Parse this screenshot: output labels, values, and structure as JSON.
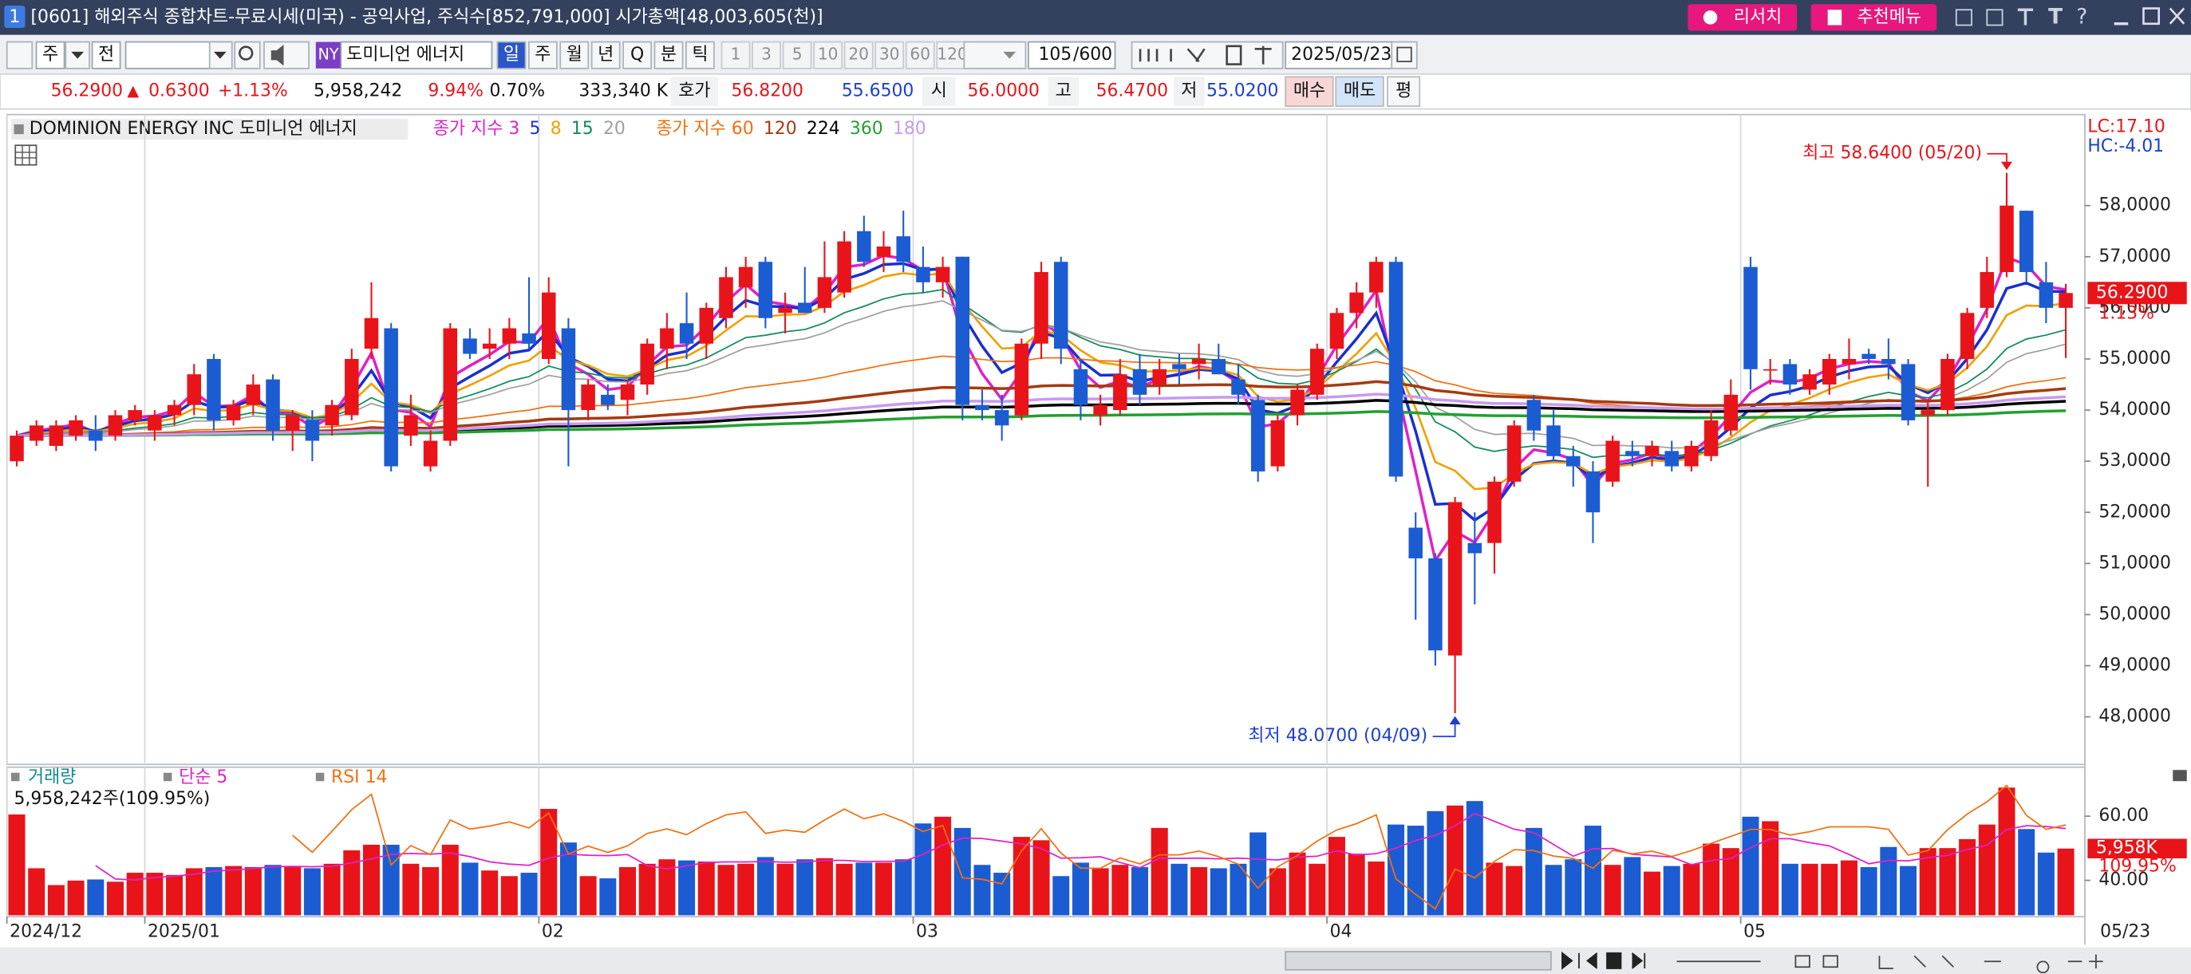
{
  "window": {
    "badge": "1",
    "title": "[0601] 해외주식 종합차트-무료시세(미국) - 공익사업, 주식수[852,791,000] 시가총액[48,003,605(천)]",
    "buttons": [
      "리서치",
      "추천메뉴"
    ],
    "glyphs": [
      "T",
      "?"
    ]
  },
  "toolbar": {
    "period_unit": "주",
    "scope": "전",
    "market": "NY",
    "stock_name": "도미니언 에너지",
    "periods": [
      "일",
      "주",
      "월",
      "년",
      "Q",
      "분",
      "틱"
    ],
    "minutes": [
      "1",
      "3",
      "5",
      "10",
      "20",
      "30",
      "60",
      "120"
    ],
    "count": "105",
    "count_max": "/600",
    "date": "2025/05/23"
  },
  "quote": {
    "price": "56.2900",
    "arrow": "▲",
    "change": "0.6300",
    "change_pct": "+1.13%",
    "volume": "5,958,242",
    "volume_pct": "9.94%",
    "turnover": "0.70%",
    "amount": "333,340 K",
    "bid_ask_label": "호가",
    "ask": "56.8200",
    "bid": "55.6500",
    "open_label": "시",
    "open": "56.0000",
    "high_label": "고",
    "high": "56.4700",
    "low_label": "저",
    "low": "55.0200",
    "buy": "매수",
    "sell": "매도",
    "avg": "평"
  },
  "chart_data": {
    "type": "candlestick",
    "name": "DOMINION ENERGY INC  도미니언 에너지",
    "ma_groups": [
      {
        "label": "종가 지수",
        "periods": [
          {
            "value": 3,
            "color": "#e020c8",
            "width": 2
          },
          {
            "value": 5,
            "color": "#1a2fd0",
            "width": 2
          },
          {
            "value": 8,
            "color": "#f0a000",
            "width": 1.5
          },
          {
            "value": 15,
            "color": "#118a5a",
            "width": 1
          },
          {
            "value": 20,
            "color": "#a0a0a0",
            "width": 1
          }
        ]
      },
      {
        "label": "종가 지수",
        "periods": [
          {
            "value": 60,
            "color": "#f07010",
            "width": 1
          },
          {
            "value": 120,
            "color": "#a63a10",
            "width": 2
          },
          {
            "value": 224,
            "color": "#000000",
            "width": 2
          },
          {
            "value": 360,
            "color": "#22a030",
            "width": 2
          },
          {
            "value": 180,
            "color": "#c89af0",
            "width": 2
          }
        ]
      }
    ],
    "up_color": "#e8141a",
    "down_color": "#1c5cd2",
    "ylim": [
      47.07,
      59.78
    ],
    "yticks": [
      {
        "value": 48,
        "label": "48,0000"
      },
      {
        "value": 49,
        "label": "49,0000"
      },
      {
        "value": 50,
        "label": "50,0000"
      },
      {
        "value": 51,
        "label": "51,0000"
      },
      {
        "value": 52,
        "label": "52,0000"
      },
      {
        "value": 53,
        "label": "53,0000"
      },
      {
        "value": 54,
        "label": "54,0000"
      },
      {
        "value": 55,
        "label": "55,0000"
      },
      {
        "value": 56,
        "label": "56,0000"
      },
      {
        "value": 57,
        "label": "57,0000"
      },
      {
        "value": 58,
        "label": "58,0000"
      }
    ],
    "lc": "LC:17.10",
    "hc": "HC:-4.01",
    "last_label": "56.2900",
    "last_change": "1.13%",
    "high_note": "최고 58.6400 (05/20)",
    "low_note": "최저 48.0700 (04/09)",
    "cursor_date": "05/23",
    "categories": [
      "2024/12",
      null,
      null,
      null,
      null,
      null,
      null,
      "2025/01",
      null,
      null,
      null,
      null,
      null,
      null,
      null,
      null,
      null,
      null,
      null,
      null,
      null,
      null,
      null,
      null,
      null,
      null,
      null,
      "02",
      null,
      null,
      null,
      null,
      null,
      null,
      null,
      null,
      null,
      null,
      null,
      null,
      null,
      null,
      null,
      null,
      null,
      null,
      "03",
      null,
      null,
      null,
      null,
      null,
      null,
      null,
      null,
      null,
      null,
      null,
      null,
      null,
      null,
      null,
      null,
      null,
      null,
      null,
      null,
      "04",
      null,
      null,
      null,
      null,
      null,
      null,
      null,
      null,
      null,
      null,
      null,
      null,
      null,
      null,
      null,
      null,
      null,
      null,
      null,
      null,
      "05",
      null,
      null,
      null,
      null,
      null,
      null,
      null,
      null,
      null,
      null,
      null,
      null,
      null,
      null,
      null,
      null
    ],
    "candles": [
      [
        53.0,
        53.6,
        52.9,
        53.5
      ],
      [
        53.4,
        53.8,
        53.3,
        53.7
      ],
      [
        53.3,
        53.8,
        53.2,
        53.7
      ],
      [
        53.5,
        53.9,
        53.4,
        53.8
      ],
      [
        53.6,
        53.9,
        53.2,
        53.4
      ],
      [
        53.5,
        54.0,
        53.4,
        53.9
      ],
      [
        53.8,
        54.1,
        53.7,
        54.0
      ],
      [
        53.6,
        54.0,
        53.4,
        53.9
      ],
      [
        53.9,
        54.2,
        53.7,
        54.1
      ],
      [
        54.1,
        54.9,
        53.9,
        54.7
      ],
      [
        55.0,
        55.1,
        53.6,
        53.8
      ],
      [
        53.8,
        54.2,
        53.7,
        54.1
      ],
      [
        54.1,
        54.7,
        53.9,
        54.5
      ],
      [
        54.6,
        54.7,
        53.4,
        53.6
      ],
      [
        53.6,
        54.0,
        53.2,
        53.9
      ],
      [
        53.8,
        54.0,
        53.0,
        53.4
      ],
      [
        53.7,
        54.2,
        53.5,
        54.1
      ],
      [
        53.9,
        55.2,
        53.8,
        55.0
      ],
      [
        55.2,
        56.5,
        55.0,
        55.8
      ],
      [
        55.6,
        55.7,
        52.8,
        52.9
      ],
      [
        53.5,
        54.3,
        53.3,
        53.9
      ],
      [
        52.9,
        53.6,
        52.8,
        53.4
      ],
      [
        53.4,
        55.7,
        53.3,
        55.6
      ],
      [
        55.4,
        55.6,
        55.0,
        55.1
      ],
      [
        55.2,
        55.6,
        55.0,
        55.3
      ],
      [
        55.3,
        55.8,
        55.0,
        55.6
      ],
      [
        55.5,
        56.6,
        55.2,
        55.3
      ],
      [
        55.0,
        56.6,
        54.9,
        56.3
      ],
      [
        55.6,
        55.8,
        52.9,
        54.0
      ],
      [
        54.0,
        54.6,
        53.8,
        54.5
      ],
      [
        54.3,
        54.5,
        54.0,
        54.1
      ],
      [
        54.2,
        54.6,
        53.9,
        54.5
      ],
      [
        54.5,
        55.4,
        54.3,
        55.3
      ],
      [
        55.2,
        55.9,
        54.8,
        55.6
      ],
      [
        55.7,
        56.3,
        55.0,
        55.3
      ],
      [
        55.3,
        56.1,
        55.0,
        56.0
      ],
      [
        55.8,
        56.8,
        55.6,
        56.6
      ],
      [
        56.4,
        57.0,
        56.0,
        56.8
      ],
      [
        56.9,
        57.0,
        55.6,
        55.8
      ],
      [
        55.9,
        56.3,
        55.5,
        56.0
      ],
      [
        56.1,
        56.8,
        55.9,
        55.9
      ],
      [
        56.0,
        57.3,
        55.9,
        56.6
      ],
      [
        56.3,
        57.5,
        56.2,
        57.3
      ],
      [
        57.5,
        57.8,
        56.8,
        56.9
      ],
      [
        57.0,
        57.5,
        56.7,
        57.2
      ],
      [
        57.4,
        57.9,
        56.7,
        56.9
      ],
      [
        56.8,
        57.2,
        56.3,
        56.5
      ],
      [
        56.5,
        57.0,
        56.2,
        56.8
      ],
      [
        57.0,
        57.0,
        53.8,
        54.1
      ],
      [
        54.1,
        54.4,
        53.8,
        54.0
      ],
      [
        54.0,
        54.3,
        53.4,
        53.7
      ],
      [
        53.9,
        55.4,
        53.8,
        55.3
      ],
      [
        55.3,
        56.9,
        55.0,
        56.7
      ],
      [
        56.9,
        57.0,
        54.9,
        55.2
      ],
      [
        54.8,
        55.0,
        53.8,
        54.1
      ],
      [
        53.9,
        54.3,
        53.7,
        54.1
      ],
      [
        54.0,
        55.0,
        53.9,
        54.7
      ],
      [
        54.8,
        55.1,
        54.1,
        54.3
      ],
      [
        54.5,
        55.0,
        54.3,
        54.8
      ],
      [
        54.9,
        55.1,
        54.5,
        54.8
      ],
      [
        54.9,
        55.3,
        54.6,
        55.0
      ],
      [
        55.0,
        55.3,
        54.7,
        54.7
      ],
      [
        54.6,
        54.9,
        54.1,
        54.3
      ],
      [
        54.2,
        54.3,
        52.6,
        52.8
      ],
      [
        52.9,
        53.9,
        52.8,
        53.8
      ],
      [
        53.9,
        54.5,
        53.7,
        54.4
      ],
      [
        54.3,
        55.3,
        54.2,
        55.2
      ],
      [
        55.2,
        56.0,
        55.0,
        55.9
      ],
      [
        55.9,
        56.5,
        55.6,
        56.3
      ],
      [
        56.3,
        57.0,
        56.0,
        56.9
      ],
      [
        56.9,
        57.0,
        52.6,
        52.7
      ],
      [
        51.7,
        52.0,
        49.9,
        51.1
      ],
      [
        51.1,
        51.2,
        49.0,
        49.3
      ],
      [
        49.2,
        52.3,
        48.07,
        52.2
      ],
      [
        51.4,
        52.0,
        50.2,
        51.2
      ],
      [
        51.4,
        52.7,
        50.8,
        52.6
      ],
      [
        52.6,
        53.8,
        52.5,
        53.7
      ],
      [
        54.2,
        54.3,
        53.4,
        53.6
      ],
      [
        53.7,
        54.0,
        53.0,
        53.1
      ],
      [
        53.1,
        53.3,
        52.5,
        52.9
      ],
      [
        52.8,
        53.0,
        51.4,
        52.0
      ],
      [
        52.6,
        53.5,
        52.5,
        53.4
      ],
      [
        53.2,
        53.4,
        52.9,
        53.1
      ],
      [
        53.1,
        53.4,
        52.9,
        53.3
      ],
      [
        53.2,
        53.4,
        52.8,
        52.9
      ],
      [
        52.9,
        53.4,
        52.8,
        53.3
      ],
      [
        53.1,
        54.0,
        53.0,
        53.8
      ],
      [
        53.6,
        54.6,
        53.5,
        54.3
      ],
      [
        56.8,
        57.0,
        54.4,
        54.8
      ],
      [
        54.8,
        55.0,
        54.5,
        54.8
      ],
      [
        54.9,
        55.0,
        54.3,
        54.5
      ],
      [
        54.4,
        54.8,
        54.3,
        54.7
      ],
      [
        54.5,
        55.1,
        54.3,
        55.0
      ],
      [
        54.9,
        55.4,
        54.6,
        55.0
      ],
      [
        55.1,
        55.2,
        54.9,
        55.0
      ],
      [
        55.0,
        55.4,
        54.6,
        54.9
      ],
      [
        54.9,
        55.0,
        53.7,
        53.8
      ],
      [
        53.9,
        54.2,
        52.5,
        54.0
      ],
      [
        54.0,
        55.1,
        53.9,
        55.0
      ],
      [
        55.0,
        56.0,
        54.8,
        55.9
      ],
      [
        56.0,
        57.0,
        55.8,
        56.7
      ],
      [
        56.7,
        58.64,
        56.6,
        58.0
      ],
      [
        57.9,
        57.9,
        56.5,
        56.7
      ],
      [
        56.5,
        56.9,
        55.7,
        56.0
      ],
      [
        56.0,
        56.47,
        55.02,
        56.29
      ]
    ],
    "volume": {
      "label": "거래량",
      "color": "#118a8a",
      "values": [
        9000,
        4200,
        2700,
        3100,
        3200,
        3000,
        3800,
        3800,
        3600,
        4200,
        4300,
        4400,
        4300,
        4500,
        4300,
        4200,
        4600,
        5800,
        6300,
        6300,
        4600,
        4300,
        6300,
        4700,
        4000,
        3500,
        3800,
        9500,
        6500,
        3500,
        3300,
        4300,
        4600,
        5000,
        4900,
        4800,
        4500,
        4600,
        5200,
        4600,
        5000,
        5100,
        4600,
        4700,
        4700,
        5000,
        8200,
        8800,
        7800,
        4500,
        3800,
        7000,
        6700,
        3500,
        4700,
        4200,
        4500,
        4300,
        7800,
        4600,
        4300,
        4200,
        4600,
        7400,
        4200,
        5600,
        4600,
        7000,
        5500,
        4800,
        8100,
        8000,
        9300,
        9800,
        10200,
        4700,
        4400,
        7800,
        4500,
        5000,
        8000,
        4500,
        5200,
        3900,
        4400,
        4600,
        6400,
        6000,
        8800,
        8400,
        4600,
        4600,
        4600,
        4900,
        4300,
        6100,
        4400,
        6000,
        6000,
        6800,
        8100,
        11400,
        7700,
        5600,
        5958
      ],
      "value_labels": {
        "104": "5,958K"
      },
      "ylim": [
        0,
        11600
      ],
      "summary": "5,958,242주(109.95%)",
      "ratio": "109.95%"
    },
    "volume_ma": {
      "label": "단순",
      "period": 5,
      "color": "#e020c8"
    },
    "rsi": {
      "label": "RSI",
      "period": 14,
      "color": "#f07010",
      "ylim": [
        29.1,
        69.6
      ],
      "yticks": [
        {
          "value": 60,
          "label": "60.00"
        },
        {
          "value": 40,
          "label": "40.00"
        }
      ]
    }
  }
}
